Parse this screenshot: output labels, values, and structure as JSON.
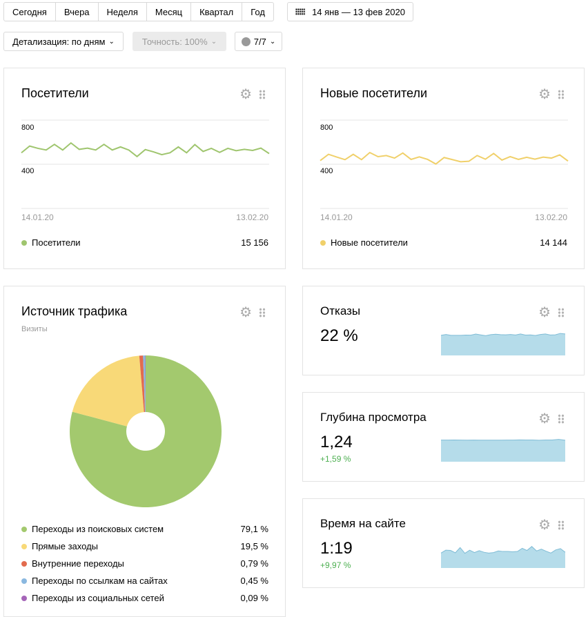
{
  "toolbar": {
    "periods": [
      "Сегодня",
      "Вчера",
      "Неделя",
      "Месяц",
      "Квартал",
      "Год"
    ],
    "date_range": "14 янв — 13 фев 2020",
    "detail": "Детализация: по дням",
    "accuracy": "Точность: 100%",
    "segments": "7/7"
  },
  "visitors": {
    "title": "Посетители",
    "y_ticks": [
      "800",
      "400"
    ],
    "date_start": "14.01.20",
    "date_end": "13.02.20",
    "legend": "Посетители",
    "total": "15 156",
    "color": "#9fc56e"
  },
  "new_visitors": {
    "title": "Новые посетители",
    "y_ticks": [
      "800",
      "400"
    ],
    "date_start": "14.01.20",
    "date_end": "13.02.20",
    "legend": "Новые посетители",
    "total": "14 144",
    "color": "#f0d06a"
  },
  "traffic": {
    "title": "Источник трафика",
    "subtitle": "Визиты",
    "items": [
      {
        "label": "Переходы из поисковых систем",
        "value": "79,1 %",
        "pct": 79.1,
        "color": "#a3c96e"
      },
      {
        "label": "Прямые заходы",
        "value": "19,5 %",
        "pct": 19.5,
        "color": "#f8d978"
      },
      {
        "label": "Внутренние переходы",
        "value": "0,79 %",
        "pct": 0.79,
        "color": "#e26b4e"
      },
      {
        "label": "Переходы по ссылкам на сайтах",
        "value": "0,45 %",
        "pct": 0.45,
        "color": "#8ab8e0"
      },
      {
        "label": "Переходы из социальных сетей",
        "value": "0,09 %",
        "pct": 0.09,
        "color": "#a565b8"
      }
    ]
  },
  "bounce": {
    "title": "Отказы",
    "value": "22 %"
  },
  "depth": {
    "title": "Глубина просмотра",
    "value": "1,24",
    "change": "+1,59 %"
  },
  "time": {
    "title": "Время на сайте",
    "value": "1:19",
    "change": "+9,97 %"
  },
  "chart_data": [
    {
      "type": "line",
      "title": "Посетители",
      "ylim": [
        0,
        800
      ],
      "y_ticks": [
        800,
        400
      ],
      "x_range": [
        "14.01.20",
        "13.02.20"
      ],
      "values": [
        504,
        565,
        544,
        529,
        580,
        529,
        593,
        535,
        546,
        529,
        580,
        529,
        557,
        529,
        470,
        533,
        512,
        487,
        504,
        557,
        504,
        578,
        516,
        544,
        508,
        544,
        523,
        535,
        525,
        546,
        497
      ]
    },
    {
      "type": "line",
      "title": "Новые посетители",
      "ylim": [
        0,
        800
      ],
      "y_ticks": [
        800,
        400
      ],
      "x_range": [
        "14.01.20",
        "13.02.20"
      ],
      "values": [
        433,
        490,
        465,
        442,
        490,
        442,
        506,
        469,
        479,
        456,
        502,
        444,
        467,
        444,
        402,
        461,
        442,
        423,
        427,
        479,
        446,
        498,
        438,
        469,
        444,
        463,
        446,
        465,
        456,
        485,
        429
      ]
    },
    {
      "type": "pie",
      "title": "Источник трафика",
      "labels": [
        "Переходы из поисковых систем",
        "Прямые заходы",
        "Внутренние переходы",
        "Переходы по ссылкам на сайтах",
        "Переходы из социальных сетей"
      ],
      "values": [
        79.1,
        19.5,
        0.79,
        0.45,
        0.09
      ]
    },
    {
      "type": "area",
      "title": "Отказы",
      "ylim": [
        0,
        30
      ],
      "values": [
        23,
        24,
        23,
        23,
        23,
        23.3,
        23.2,
        24.5,
        23.5,
        22.6,
        23.8,
        24.3,
        23.8,
        23.6,
        24,
        23.4,
        24.6,
        23.3,
        23.5,
        22.8,
        24,
        24.6,
        23.4,
        23.6,
        25.2,
        24.6
      ]
    },
    {
      "type": "area",
      "title": "Глубина просмотра",
      "ylim": [
        0,
        1.5
      ],
      "values": [
        1.24,
        1.24,
        1.245,
        1.24,
        1.235,
        1.24,
        1.235,
        1.235,
        1.235,
        1.235,
        1.24,
        1.24,
        1.25,
        1.245,
        1.245,
        1.23,
        1.245,
        1.245,
        1.28,
        1.23
      ]
    },
    {
      "type": "area",
      "title": "Время на сайте",
      "ylim": [
        0,
        100
      ],
      "values": [
        57,
        68,
        67,
        58,
        78,
        56,
        68,
        59,
        66,
        60,
        57,
        59,
        65,
        63,
        63,
        62,
        63,
        75,
        67,
        82,
        65,
        72,
        64,
        57,
        69,
        74,
        60
      ]
    }
  ]
}
